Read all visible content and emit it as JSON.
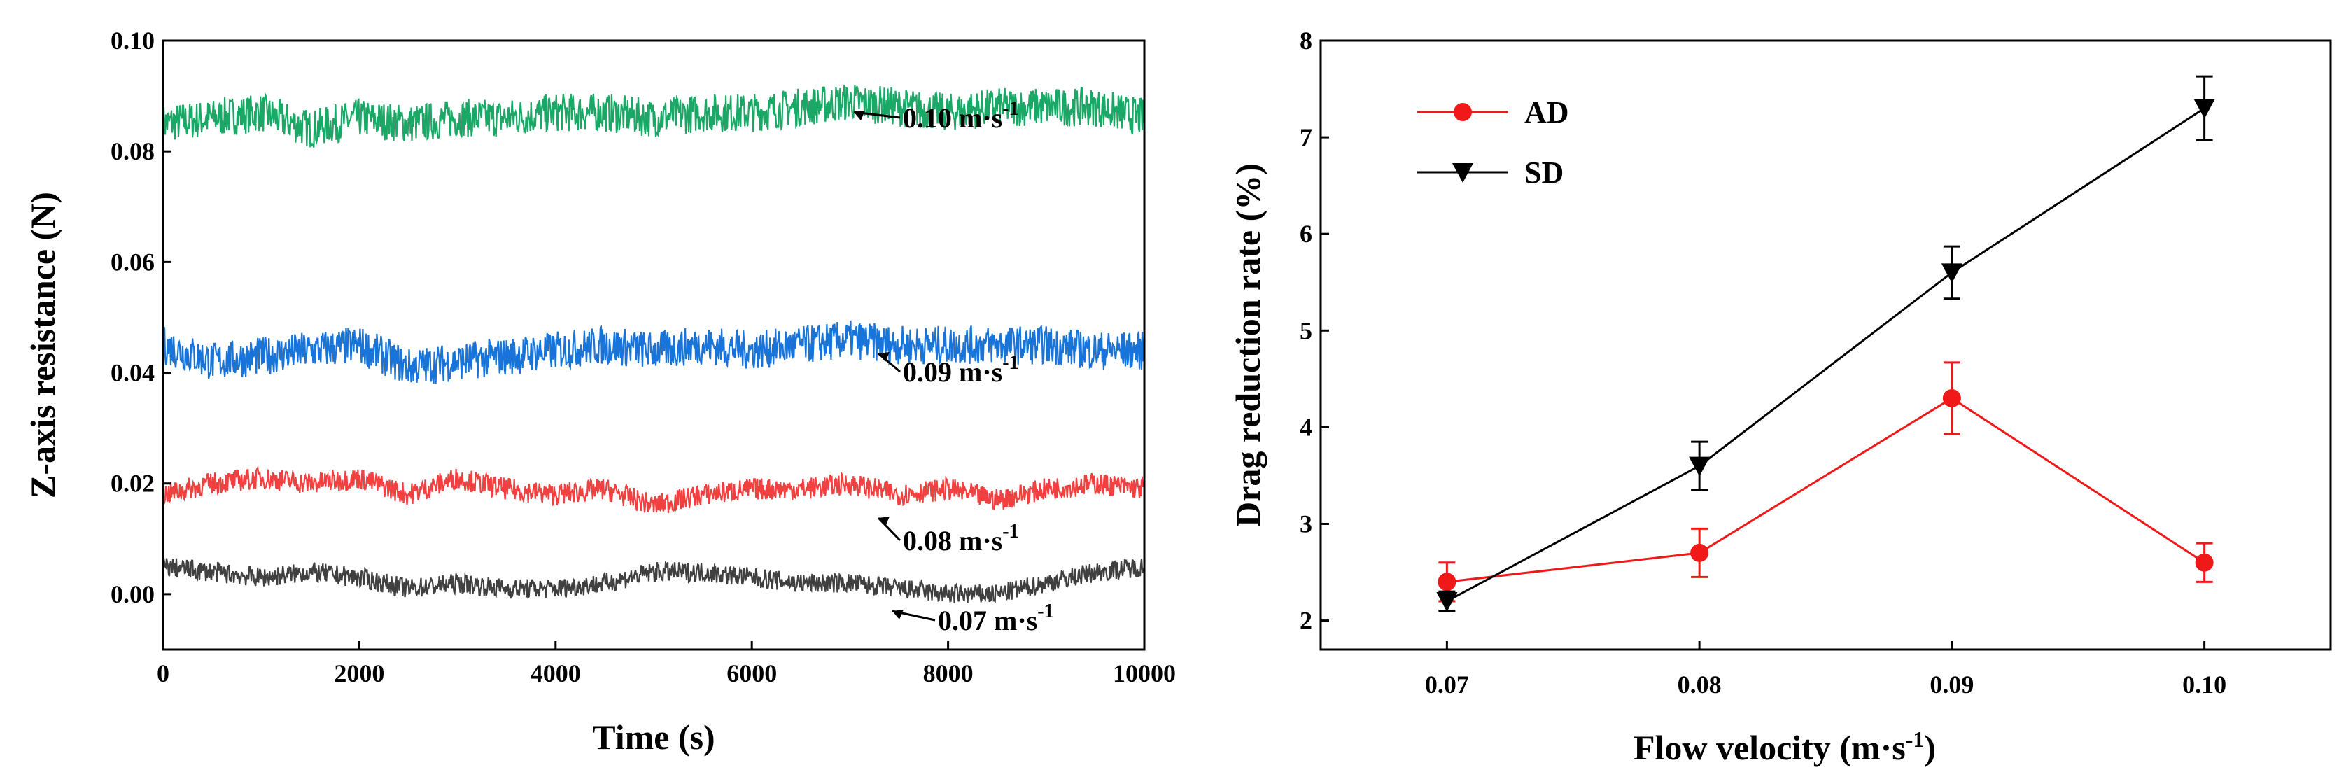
{
  "chart_data": [
    {
      "type": "line",
      "title": "",
      "xlabel": "Time (s)",
      "ylabel": "Z-axis resistance (N)",
      "xlim": [
        0,
        10000
      ],
      "ylim": [
        -0.01,
        0.1
      ],
      "xticks": [
        0,
        2000,
        4000,
        6000,
        8000,
        10000
      ],
      "yticks": [
        "0.00",
        "0.02",
        "0.04",
        "0.06",
        "0.08",
        "0.10"
      ],
      "series": [
        {
          "name": "0.10 m·s⁻¹",
          "label_text": "0.10 m·s",
          "label_sup": "-1",
          "color": "#1aa866",
          "mean": 0.0865,
          "noise": 0.0035,
          "x": [
            0,
            500,
            1000,
            1500,
            2000,
            2500,
            3000,
            3500,
            4000,
            4500,
            5000,
            5500,
            6000,
            6500,
            7000,
            7500,
            8000,
            8500,
            9000,
            9500,
            10000
          ],
          "y": [
            0.085,
            0.086,
            0.087,
            0.084,
            0.086,
            0.085,
            0.086,
            0.086,
            0.087,
            0.087,
            0.086,
            0.087,
            0.087,
            0.088,
            0.089,
            0.088,
            0.087,
            0.088,
            0.088,
            0.088,
            0.086
          ]
        },
        {
          "name": "0.09 m·s⁻¹",
          "label_text": "0.09 m·s",
          "label_sup": "-1",
          "color": "#1874d8",
          "mean": 0.044,
          "noise": 0.0035,
          "x": [
            0,
            500,
            1000,
            1500,
            2000,
            2500,
            3000,
            3500,
            4000,
            4500,
            5000,
            5500,
            6000,
            6500,
            7000,
            7500,
            8000,
            8500,
            9000,
            9500,
            10000
          ],
          "y": [
            0.045,
            0.042,
            0.043,
            0.044,
            0.045,
            0.041,
            0.042,
            0.043,
            0.044,
            0.045,
            0.044,
            0.045,
            0.044,
            0.045,
            0.046,
            0.045,
            0.045,
            0.045,
            0.045,
            0.044,
            0.044
          ]
        },
        {
          "name": "0.08 m·s⁻¹",
          "label_text": "0.08 m·s",
          "label_sup": "-1",
          "color": "#f04040",
          "mean": 0.019,
          "noise": 0.002,
          "x": [
            0,
            500,
            1000,
            1500,
            2000,
            2500,
            3000,
            3500,
            4000,
            4500,
            5000,
            5500,
            6000,
            6500,
            7000,
            7500,
            8000,
            8500,
            9000,
            9500,
            10000
          ],
          "y": [
            0.018,
            0.02,
            0.021,
            0.02,
            0.021,
            0.018,
            0.021,
            0.019,
            0.018,
            0.019,
            0.016,
            0.018,
            0.019,
            0.019,
            0.02,
            0.018,
            0.019,
            0.017,
            0.019,
            0.02,
            0.019
          ]
        },
        {
          "name": "0.07 m·s⁻¹",
          "label_text": "0.07 m·s",
          "label_sup": "-1",
          "color": "#404040",
          "mean": 0.003,
          "noise": 0.0018,
          "x": [
            0,
            500,
            1000,
            1500,
            2000,
            2500,
            3000,
            3500,
            4000,
            4500,
            5000,
            5500,
            6000,
            6500,
            7000,
            7500,
            8000,
            8500,
            9000,
            9500,
            10000
          ],
          "y": [
            0.005,
            0.004,
            0.003,
            0.004,
            0.003,
            0.001,
            0.002,
            0.001,
            0.001,
            0.002,
            0.004,
            0.004,
            0.003,
            0.002,
            0.002,
            0.001,
            0.0,
            0.0,
            0.002,
            0.004,
            0.005
          ]
        }
      ]
    },
    {
      "type": "line",
      "title": "",
      "xlabel": "Flow velocity (m·s",
      "xlabel_sup": "-1",
      "xlabel_tail": ")",
      "ylabel": "Drag reduction rate (%)",
      "xlim": [
        0.065,
        0.105
      ],
      "ylim": [
        1.7,
        8
      ],
      "xticks": [
        "0.07",
        "0.08",
        "0.09",
        "0.10"
      ],
      "yticks": [
        "2",
        "3",
        "4",
        "5",
        "6",
        "7",
        "8"
      ],
      "legend_position": "top-left",
      "series": [
        {
          "name": "AD",
          "color": "#f01818",
          "marker": "circle",
          "x": [
            0.07,
            0.08,
            0.09,
            0.1
          ],
          "y": [
            2.4,
            2.7,
            4.3,
            2.6
          ],
          "err": [
            0.2,
            0.25,
            0.37,
            0.2
          ]
        },
        {
          "name": "SD",
          "color": "#000000",
          "marker": "triangle-down",
          "x": [
            0.07,
            0.08,
            0.09,
            0.1
          ],
          "y": [
            2.2,
            3.6,
            5.6,
            7.3
          ],
          "err": [
            0.1,
            0.25,
            0.27,
            0.33
          ]
        }
      ]
    }
  ]
}
